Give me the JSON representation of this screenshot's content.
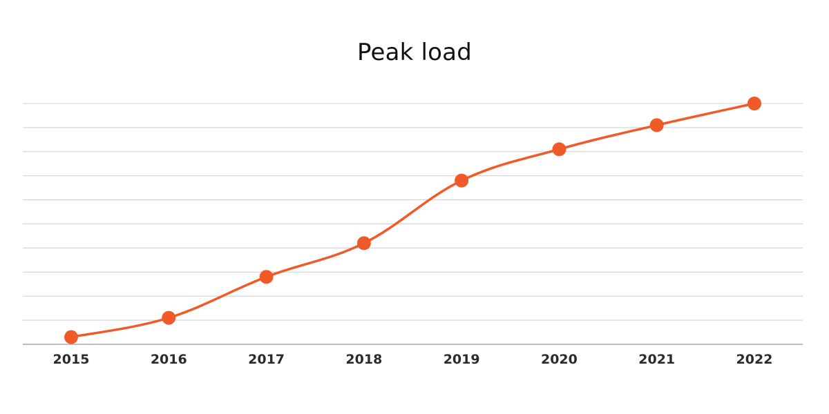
{
  "chart_data": {
    "type": "line",
    "title": "Peak load",
    "xlabel": "",
    "ylabel": "",
    "categories": [
      "2015",
      "2016",
      "2017",
      "2018",
      "2019",
      "2020",
      "2021",
      "2022"
    ],
    "series": [
      {
        "values": [
          0.3,
          1.1,
          2.8,
          4.2,
          6.8,
          8.1,
          9.1,
          10.0
        ]
      }
    ],
    "ylim": [
      0,
      10
    ],
    "grid": true,
    "line_color": "#F05A28",
    "grid_color": "#D0D0D0"
  }
}
